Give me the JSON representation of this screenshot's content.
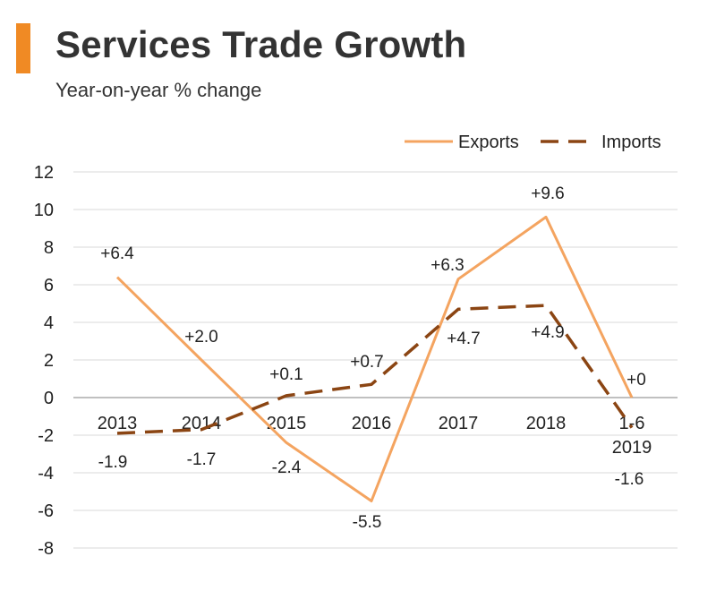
{
  "header": {
    "title": "Services Trade Growth",
    "subtitle": "Year-on-year % change",
    "accent_color": "#f08a24"
  },
  "chart_data": {
    "type": "line",
    "title": "Services Trade Growth",
    "subtitle": "Year-on-year % change",
    "xlabel": "",
    "ylabel": "",
    "ylim": [
      -8,
      12
    ],
    "yticks": [
      -8,
      -6,
      -4,
      -2,
      0,
      2,
      4,
      6,
      8,
      10,
      12
    ],
    "categories": [
      "2013",
      "2014",
      "2015",
      "2016",
      "2017",
      "2018",
      "1-6\n2019"
    ],
    "legend_position": "top-right",
    "series": [
      {
        "name": "Exports",
        "values": [
          6.4,
          2.0,
          -2.4,
          -5.5,
          6.3,
          9.6,
          0
        ],
        "labels": [
          "+6.4",
          "+2.0",
          "-2.4",
          "-5.5",
          "+6.3",
          "+9.6",
          "+0"
        ],
        "color": "#f4a460",
        "style": "solid"
      },
      {
        "name": "Imports",
        "values": [
          -1.9,
          -1.7,
          0.1,
          0.7,
          4.7,
          4.9,
          -1.6
        ],
        "labels": [
          "-1.9",
          "-1.7",
          "+0.1",
          "+0.7",
          "+4.7",
          "+4.9",
          "-1.6"
        ],
        "color": "#8b4513",
        "style": "dashed"
      }
    ]
  }
}
